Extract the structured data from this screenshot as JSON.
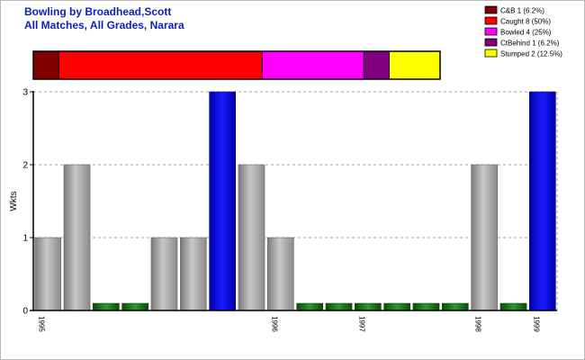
{
  "title_lines": [
    "Bowling by Broadhead,Scott",
    "All Matches, All Grades, Narara"
  ],
  "chart_data": [
    {
      "type": "bar",
      "orientation": "horizontal",
      "stacked": true,
      "description": "Dismissal type breakdown (100% stacked bar)",
      "segments": [
        {
          "label": "C&B 1 (6.2%)",
          "value": 1,
          "percent": 6.2,
          "color": "#800000"
        },
        {
          "label": "Caught 8 (50%)",
          "value": 8,
          "percent": 50,
          "color": "#ff0000"
        },
        {
          "label": "Bowled 4 (25%)",
          "value": 4,
          "percent": 25,
          "color": "#ff00ff"
        },
        {
          "label": "CtBehind 1 (6.2%)",
          "value": 1,
          "percent": 6.2,
          "color": "#800080"
        },
        {
          "label": "Stumped 2 (12.5%)",
          "value": 2,
          "percent": 12.5,
          "color": "#ffff00"
        }
      ],
      "legend_position": "top-right"
    },
    {
      "type": "bar",
      "ylabel": "Wkts",
      "ylim": [
        0,
        3
      ],
      "yticks": [
        0,
        1,
        2,
        3
      ],
      "grid": true,
      "values": [
        1,
        2,
        0,
        0,
        1,
        1,
        3,
        2,
        1,
        0,
        0,
        0,
        0,
        0,
        0,
        2,
        0,
        3
      ],
      "highlight_color": "#0000e0",
      "zero_color": "#1a7a1a",
      "normal_color": "#a0a0a0",
      "x_tick_labels": [
        {
          "index": 0,
          "label": "1995"
        },
        {
          "index": 8,
          "label": "1996"
        },
        {
          "index": 11,
          "label": "1997"
        },
        {
          "index": 15,
          "label": "1998"
        },
        {
          "index": 17,
          "label": "1999"
        }
      ]
    }
  ]
}
